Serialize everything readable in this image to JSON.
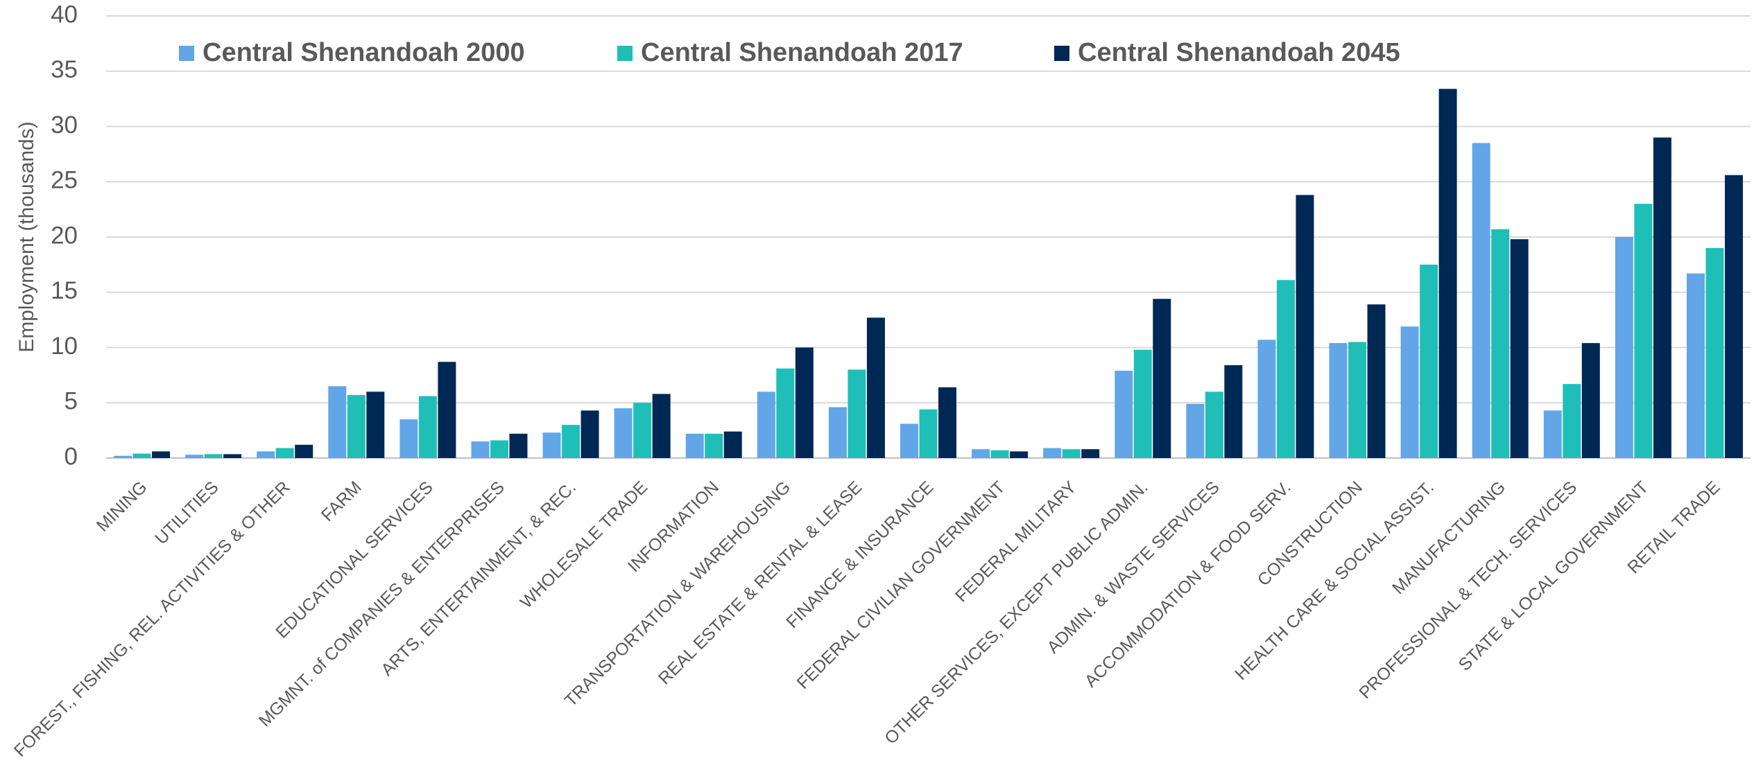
{
  "chart_data": {
    "type": "bar",
    "y_label": "Employment (thousands)",
    "categories": [
      "MINING",
      "UTILITIES",
      "FOREST., FISHING, REL. ACTIVITIES & OTHER",
      "FARM",
      "EDUCATIONAL SERVICES",
      "MGMNT. of COMPANIES & ENTERPRISES",
      "ARTS, ENTERTAINMENT, & REC.",
      "WHOLESALE TRADE",
      "INFORMATION",
      "TRANSPORTATION & WAREHOUSING",
      "REAL ESTATE & RENTAL & LEASE",
      "FINANCE & INSURANCE",
      "FEDERAL CIVILIAN GOVERNMENT",
      "FEDERAL MILITARY",
      "OTHER SERVICES, EXCEPT PUBLIC ADMIN.",
      "ADMIN. & WASTE SERVICES",
      "ACCOMMODATION & FOOD SERV.",
      "CONSTRUCTION",
      "HEALTH CARE & SOCIAL ASSIST.",
      "MANUFACTURING",
      "PROFESSIONAL & TECH. SERVICES",
      "STATE & LOCAL GOVERNMENT",
      "RETAIL TRADE"
    ],
    "series": [
      {
        "name": "Central Shenandoah 2000",
        "color": "#62a6e8",
        "values": [
          0.2,
          0.3,
          0.6,
          6.5,
          3.5,
          1.5,
          2.3,
          4.5,
          2.2,
          6.0,
          4.6,
          3.1,
          0.8,
          0.9,
          7.9,
          4.9,
          10.7,
          10.4,
          11.9,
          28.5,
          4.3,
          20.0,
          16.7
        ]
      },
      {
        "name": "Central Shenandoah 2017",
        "color": "#1fbfb8",
        "values": [
          0.4,
          0.35,
          0.9,
          5.7,
          5.6,
          1.6,
          3.0,
          5.0,
          2.2,
          8.1,
          8.0,
          4.4,
          0.7,
          0.8,
          9.8,
          6.0,
          16.1,
          10.5,
          17.5,
          20.7,
          6.7,
          23.0,
          19.0
        ]
      },
      {
        "name": "Central Shenandoah 2045",
        "color": "#002855",
        "values": [
          0.6,
          0.35,
          1.2,
          6.0,
          8.7,
          2.2,
          4.3,
          5.8,
          2.4,
          10.0,
          12.7,
          6.4,
          0.6,
          0.8,
          14.4,
          8.4,
          23.8,
          13.9,
          33.4,
          19.8,
          10.4,
          29.0,
          25.6
        ]
      }
    ],
    "ylim": [
      0,
      40
    ],
    "yticks": [
      0,
      5,
      10,
      15,
      20,
      25,
      30,
      35,
      40
    ],
    "grid": true,
    "legend": "top"
  }
}
